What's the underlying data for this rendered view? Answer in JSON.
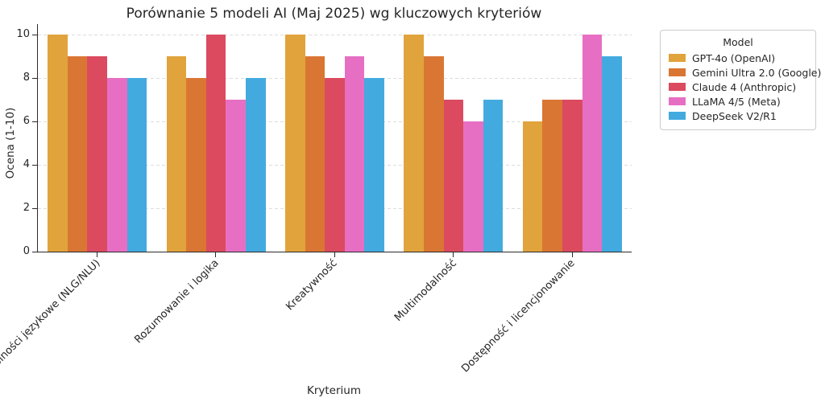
{
  "figure": {
    "title": "Porównanie 5 modeli AI (Maj 2025) wg kluczowych kryteriów"
  },
  "chart_data": {
    "type": "bar",
    "title": "Porównanie 5 modeli AI (Maj 2025) wg kluczowych kryteriów",
    "xlabel": "Kryterium",
    "ylabel": "Ocena (1-10)",
    "categories": [
      "Zdolności językowe (NLG/NLU)",
      "Rozumowanie i logika",
      "Kreatywność",
      "Multimodalność",
      "Dostępność i licencjonowanie"
    ],
    "series": [
      {
        "name": "GPT-4o (OpenAI)",
        "color": "#E1A33B",
        "values": [
          10,
          9,
          10,
          10,
          6
        ]
      },
      {
        "name": "Gemini Ultra 2.0 (Google)",
        "color": "#DA7634",
        "values": [
          9,
          8,
          9,
          9,
          7
        ]
      },
      {
        "name": "Claude 4 (Anthropic)",
        "color": "#DB4A5F",
        "values": [
          9,
          10,
          8,
          7,
          7
        ]
      },
      {
        "name": "LLaMA 4/5 (Meta)",
        "color": "#E76FC3",
        "values": [
          8,
          7,
          9,
          6,
          10
        ]
      },
      {
        "name": "DeepSeek V2/R1",
        "color": "#43AADF",
        "values": [
          8,
          8,
          8,
          7,
          9
        ]
      }
    ],
    "yticks": [
      0,
      2,
      4,
      6,
      8,
      10
    ],
    "ylim": [
      0,
      10.5
    ],
    "grid": true,
    "grid_style": "dashed",
    "legend_title": "Model",
    "legend_position": "outside upper right",
    "bar_group_width_fraction": 0.83
  }
}
